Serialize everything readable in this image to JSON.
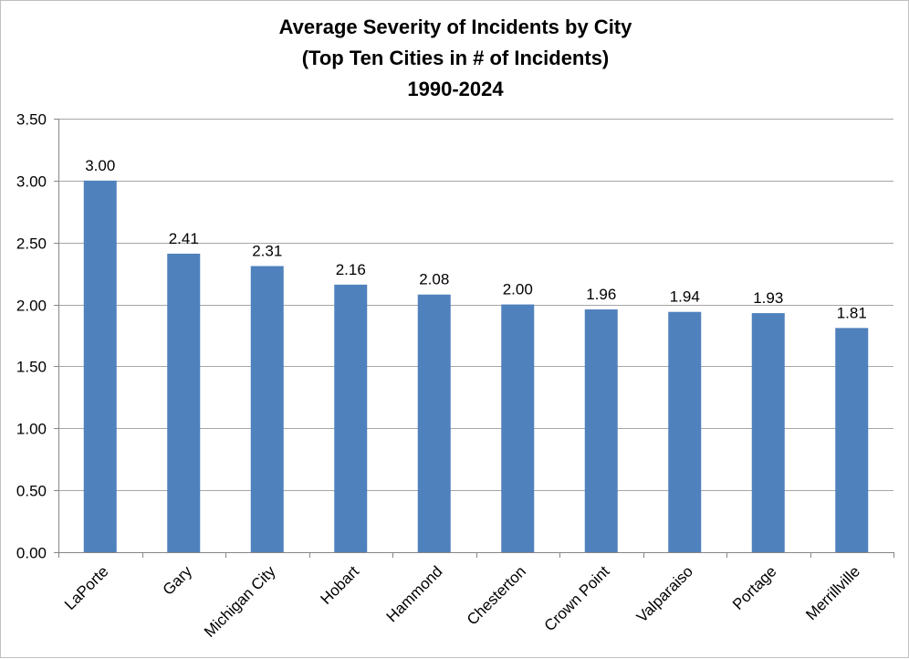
{
  "chart_data": {
    "type": "bar",
    "title_lines": [
      "Average Severity of Incidents by City",
      "(Top Ten Cities in # of Incidents)",
      "1990-2024"
    ],
    "categories": [
      "LaPorte",
      "Gary",
      "Michigan City",
      "Hobart",
      "Hammond",
      "Chesterton",
      "Crown Point",
      "Valparaiso",
      "Portage",
      "Merrillville"
    ],
    "values": [
      3.0,
      2.41,
      2.31,
      2.16,
      2.08,
      2.0,
      1.96,
      1.94,
      1.93,
      1.81
    ],
    "data_labels": [
      "3.00",
      "2.41",
      "2.31",
      "2.16",
      "2.08",
      "2.00",
      "1.96",
      "1.94",
      "1.93",
      "1.81"
    ],
    "y_ticks": [
      0,
      0.5,
      1,
      1.5,
      2,
      2.5,
      3,
      3.5
    ],
    "y_tick_labels": [
      "0.00",
      "0.50",
      "1.00",
      "1.50",
      "2.00",
      "2.50",
      "3.00",
      "3.50"
    ],
    "ylim": [
      0,
      3.5
    ],
    "xlabel": "",
    "ylabel": "",
    "grid": true,
    "legend": "none",
    "bar_color": "#4f81bd",
    "grid_color": "#a6a6a6",
    "axis_color": "#868686"
  }
}
